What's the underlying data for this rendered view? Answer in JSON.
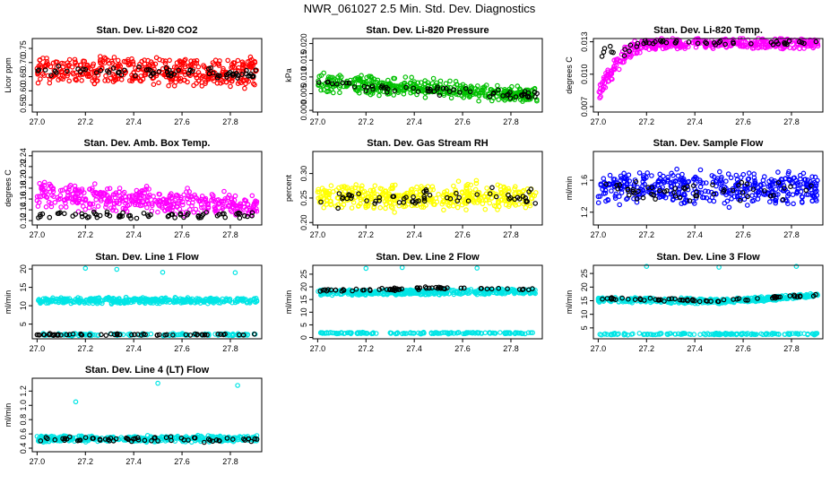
{
  "page_title": "NWR_061027  2.5 Min. Std. Dev. Diagnostics",
  "chart_data": [
    {
      "type": "scatter",
      "title": "Stan. Dev. Li-820 CO2",
      "ylabel": "Licor ppm",
      "color": "#ff0000",
      "xlim": [
        26.98,
        27.93
      ],
      "ylim": [
        0.525,
        0.785
      ],
      "xticks": [
        {
          "v": 27.0,
          "t": "27.0"
        },
        {
          "v": 27.2,
          "t": "27.2"
        },
        {
          "v": 27.4,
          "t": "27.4"
        },
        {
          "v": 27.6,
          "t": "27.6"
        },
        {
          "v": 27.8,
          "t": "27.8"
        }
      ],
      "yticks": [
        {
          "v": 0.55,
          "t": "0.55"
        },
        {
          "v": 0.6,
          "t": "0.60"
        },
        {
          "v": 0.65,
          "t": "0.65"
        },
        {
          "v": 0.7,
          "t": "0.70"
        },
        {
          "v": 0.75,
          "t": "0.75"
        }
      ],
      "series": [
        {
          "name": "all",
          "color": "#ff0000",
          "band": [
            [
              27.0,
              0.64,
              0.71
            ],
            [
              27.5,
              0.63,
              0.71
            ],
            [
              27.9,
              0.62,
              0.71
            ]
          ],
          "spread": 0.045,
          "n": 420
        },
        {
          "name": "highlight",
          "color": "#000000",
          "band": [
            [
              27.0,
              0.66,
              0.68
            ],
            [
              27.9,
              0.65,
              0.67
            ]
          ],
          "spread": 0.03,
          "n": 70
        }
      ]
    },
    {
      "type": "scatter",
      "title": "Stan. Dev. Li-820 Pressure",
      "ylabel": "kPa",
      "color": "#00c000",
      "xlim": [
        26.98,
        27.93
      ],
      "ylim": [
        -0.0005,
        0.0215
      ],
      "xticks": [
        {
          "v": 27.0,
          "t": "27.0"
        },
        {
          "v": 27.2,
          "t": "27.2"
        },
        {
          "v": 27.4,
          "t": "27.4"
        },
        {
          "v": 27.6,
          "t": "27.6"
        },
        {
          "v": 27.8,
          "t": "27.8"
        }
      ],
      "yticks": [
        {
          "v": 0.0,
          "t": "0.000"
        },
        {
          "v": 0.005,
          "t": "0.005"
        },
        {
          "v": 0.01,
          "t": "0.010"
        },
        {
          "v": 0.015,
          "t": "0.015"
        },
        {
          "v": 0.02,
          "t": "0.020"
        }
      ],
      "series": [
        {
          "name": "all",
          "color": "#00c000",
          "band": [
            [
              27.0,
              0.006,
              0.01
            ],
            [
              27.5,
              0.005,
              0.008
            ],
            [
              27.9,
              0.003,
              0.006
            ]
          ],
          "spread": 0.004,
          "n": 420
        },
        {
          "name": "highlight",
          "color": "#000000",
          "band": [
            [
              27.0,
              0.007,
              0.009
            ],
            [
              27.9,
              0.004,
              0.005
            ]
          ],
          "spread": 0.003,
          "n": 60
        }
      ]
    },
    {
      "type": "scatter",
      "title": "Stan. Dev. Li-820 Temp.",
      "ylabel": "degrees C",
      "color": "#ff00ff",
      "xlim": [
        26.98,
        27.93
      ],
      "ylim": [
        0.0065,
        0.0133
      ],
      "xticks": [
        {
          "v": 27.0,
          "t": "27.0"
        },
        {
          "v": 27.2,
          "t": "27.2"
        },
        {
          "v": 27.4,
          "t": "27.4"
        },
        {
          "v": 27.6,
          "t": "27.6"
        },
        {
          "v": 27.8,
          "t": "27.8"
        }
      ],
      "yticks": [
        {
          "v": 0.007,
          "t": "0.007"
        },
        {
          "v": 0.01,
          "t": "0.010"
        },
        {
          "v": 0.013,
          "t": "0.013"
        }
      ],
      "series": [
        {
          "name": "all",
          "color": "#ff00ff",
          "band": [
            [
              27.0,
              0.0075,
              0.009
            ],
            [
              27.1,
              0.011,
              0.0125
            ],
            [
              27.2,
              0.0125,
              0.0132
            ],
            [
              27.9,
              0.0125,
              0.0132
            ]
          ],
          "spread": 0.0006,
          "n": 420
        },
        {
          "name": "highlight",
          "color": "#000000",
          "band": [
            [
              27.1,
              0.0115,
              0.0125
            ],
            [
              27.2,
              0.0128,
              0.0131
            ],
            [
              27.9,
              0.0128,
              0.0131
            ]
          ],
          "spread": 0.0004,
          "n": 50
        }
      ]
    },
    {
      "type": "scatter",
      "title": "Stan. Dev. Amb. Box Temp.",
      "ylabel": "degrees C",
      "color": "#ff00ff",
      "xlim": [
        26.98,
        27.93
      ],
      "ylim": [
        0.112,
        0.248
      ],
      "xticks": [
        {
          "v": 27.0,
          "t": "27.0"
        },
        {
          "v": 27.2,
          "t": "27.2"
        },
        {
          "v": 27.4,
          "t": "27.4"
        },
        {
          "v": 27.6,
          "t": "27.6"
        },
        {
          "v": 27.8,
          "t": "27.8"
        }
      ],
      "yticks": [
        {
          "v": 0.12,
          "t": "0.12"
        },
        {
          "v": 0.14,
          "t": "0.14"
        },
        {
          "v": 0.16,
          "t": "0.16"
        },
        {
          "v": 0.18,
          "t": "0.18"
        },
        {
          "v": 0.2,
          "t": "0.20"
        },
        {
          "v": 0.22,
          "t": "0.22"
        },
        {
          "v": 0.24,
          "t": "0.24"
        }
      ],
      "series": [
        {
          "name": "all",
          "color": "#ff00ff",
          "band": [
            [
              27.0,
              0.15,
              0.19
            ],
            [
              27.5,
              0.14,
              0.17
            ],
            [
              27.9,
              0.135,
              0.16
            ]
          ],
          "spread": 0.03,
          "n": 420
        },
        {
          "name": "highlight",
          "color": "#000000",
          "band": [
            [
              27.0,
              0.125,
              0.135
            ],
            [
              27.9,
              0.125,
              0.135
            ]
          ],
          "spread": 0.008,
          "n": 70
        }
      ]
    },
    {
      "type": "scatter",
      "title": "Stan. Dev. Gas Stream RH",
      "ylabel": "percent",
      "color": "#ffff00",
      "xlim": [
        26.98,
        27.93
      ],
      "ylim": [
        0.195,
        0.345
      ],
      "xticks": [
        {
          "v": 27.0,
          "t": "27.0"
        },
        {
          "v": 27.2,
          "t": "27.2"
        },
        {
          "v": 27.4,
          "t": "27.4"
        },
        {
          "v": 27.6,
          "t": "27.6"
        },
        {
          "v": 27.8,
          "t": "27.8"
        }
      ],
      "yticks": [
        {
          "v": 0.2,
          "t": "0.20"
        },
        {
          "v": 0.25,
          "t": "0.25"
        },
        {
          "v": 0.3,
          "t": "0.30"
        }
      ],
      "series": [
        {
          "name": "all",
          "color": "#ffff00",
          "band": [
            [
              27.0,
              0.235,
              0.27
            ],
            [
              27.9,
              0.235,
              0.27
            ]
          ],
          "spread": 0.035,
          "n": 420
        },
        {
          "name": "highlight",
          "color": "#000000",
          "band": [
            [
              27.0,
              0.24,
              0.26
            ],
            [
              27.9,
              0.24,
              0.26
            ]
          ],
          "spread": 0.035,
          "n": 60
        }
      ]
    },
    {
      "type": "scatter",
      "title": "Stan. Dev. Sample Flow",
      "ylabel": "ml/min",
      "color": "#0000ff",
      "xlim": [
        26.98,
        27.93
      ],
      "ylim": [
        1.04,
        1.96
      ],
      "xticks": [
        {
          "v": 27.0,
          "t": "27.0"
        },
        {
          "v": 27.2,
          "t": "27.2"
        },
        {
          "v": 27.4,
          "t": "27.4"
        },
        {
          "v": 27.6,
          "t": "27.6"
        },
        {
          "v": 27.8,
          "t": "27.8"
        }
      ],
      "yticks": [
        {
          "v": 1.2,
          "t": "1.2"
        },
        {
          "v": 1.6,
          "t": "1.6"
        }
      ],
      "series": [
        {
          "name": "all",
          "color": "#0000ff",
          "band": [
            [
              27.0,
              1.35,
              1.65
            ],
            [
              27.9,
              1.35,
              1.65
            ]
          ],
          "spread": 0.22,
          "n": 420
        },
        {
          "name": "highlight",
          "color": "#000000",
          "band": [
            [
              27.0,
              1.38,
              1.55
            ],
            [
              27.9,
              1.38,
              1.55
            ]
          ],
          "spread": 0.15,
          "n": 55
        }
      ]
    },
    {
      "type": "scatter",
      "title": "Stan. Dev. Line 1 Flow",
      "ylabel": "ml/min",
      "color": "#00e5e5",
      "xlim": [
        26.98,
        27.93
      ],
      "ylim": [
        1.0,
        21.0
      ],
      "xticks": [
        {
          "v": 27.0,
          "t": "27.0"
        },
        {
          "v": 27.2,
          "t": "27.2"
        },
        {
          "v": 27.4,
          "t": "27.4"
        },
        {
          "v": 27.6,
          "t": "27.6"
        },
        {
          "v": 27.8,
          "t": "27.8"
        }
      ],
      "yticks": [
        {
          "v": 5,
          "t": "5"
        },
        {
          "v": 10,
          "t": "10"
        },
        {
          "v": 15,
          "t": "15"
        },
        {
          "v": 20,
          "t": "20"
        }
      ],
      "series": [
        {
          "name": "upper",
          "color": "#00e5e5",
          "band": [
            [
              27.0,
              10.8,
              12.0
            ],
            [
              27.9,
              10.8,
              12.0
            ]
          ],
          "spread": 1.0,
          "n": 380
        },
        {
          "name": "lower",
          "color": "#00e5e5",
          "band": [
            [
              27.0,
              1.9,
              2.4
            ],
            [
              27.9,
              1.9,
              2.4
            ]
          ],
          "spread": 0.3,
          "n": 120
        },
        {
          "name": "highlight",
          "color": "#000000",
          "band": [
            [
              27.0,
              2.0,
              2.3
            ],
            [
              27.9,
              2.0,
              2.3
            ]
          ],
          "spread": 0.3,
          "n": 60
        }
      ],
      "outliers": [
        [
          27.2,
          20.2
        ],
        [
          27.33,
          19.9
        ],
        [
          27.52,
          19.1
        ],
        [
          27.82,
          19.0
        ]
      ]
    },
    {
      "type": "scatter",
      "title": "Stan. Dev. Line 2 Flow",
      "ylabel": "ml/min",
      "color": "#00e5e5",
      "xlim": [
        26.98,
        27.93
      ],
      "ylim": [
        -0.5,
        28.5
      ],
      "xticks": [
        {
          "v": 27.0,
          "t": "27.0"
        },
        {
          "v": 27.2,
          "t": "27.2"
        },
        {
          "v": 27.4,
          "t": "27.4"
        },
        {
          "v": 27.6,
          "t": "27.6"
        },
        {
          "v": 27.8,
          "t": "27.8"
        }
      ],
      "yticks": [
        {
          "v": 0,
          "t": "0"
        },
        {
          "v": 5,
          "t": "5"
        },
        {
          "v": 10,
          "t": "10"
        },
        {
          "v": 15,
          "t": "15"
        },
        {
          "v": 20,
          "t": "20"
        },
        {
          "v": 25,
          "t": "25"
        }
      ],
      "series": [
        {
          "name": "upper",
          "color": "#00e5e5",
          "band": [
            [
              27.0,
              16.8,
              18.6
            ],
            [
              27.9,
              17.2,
              19.2
            ]
          ],
          "spread": 0.9,
          "n": 380
        },
        {
          "name": "lower",
          "color": "#00e5e5",
          "band": [
            [
              27.0,
              1.5,
              2.0
            ],
            [
              27.9,
              1.5,
              2.0
            ]
          ],
          "spread": 0.3,
          "n": 150
        },
        {
          "name": "highlight",
          "color": "#000000",
          "band": [
            [
              27.0,
              18.0,
              18.8
            ],
            [
              27.5,
              19.2,
              19.9
            ],
            [
              27.9,
              18.6,
              19.4
            ]
          ],
          "spread": 0.6,
          "n": 60
        }
      ],
      "outliers": [
        [
          27.2,
          27.3
        ],
        [
          27.35,
          27.6
        ],
        [
          27.66,
          27.4
        ]
      ]
    },
    {
      "type": "scatter",
      "title": "Stan. Dev. Line 3 Flow",
      "ylabel": "ml/min",
      "color": "#00e5e5",
      "xlim": [
        26.98,
        27.93
      ],
      "ylim": [
        1.0,
        28.0
      ],
      "xticks": [
        {
          "v": 27.0,
          "t": "27.0"
        },
        {
          "v": 27.2,
          "t": "27.2"
        },
        {
          "v": 27.4,
          "t": "27.4"
        },
        {
          "v": 27.6,
          "t": "27.6"
        },
        {
          "v": 27.8,
          "t": "27.8"
        }
      ],
      "yticks": [
        {
          "v": 5,
          "t": "5"
        },
        {
          "v": 10,
          "t": "10"
        },
        {
          "v": 15,
          "t": "15"
        },
        {
          "v": 20,
          "t": "20"
        },
        {
          "v": 25,
          "t": "25"
        }
      ],
      "series": [
        {
          "name": "upper",
          "color": "#00e5e5",
          "band": [
            [
              27.0,
              14.6,
              16.2
            ],
            [
              27.5,
              14.0,
              15.6
            ],
            [
              27.9,
              16.2,
              17.6
            ]
          ],
          "spread": 0.8,
          "n": 380
        },
        {
          "name": "lower",
          "color": "#00e5e5",
          "band": [
            [
              27.0,
              2.5,
              3.0
            ],
            [
              27.9,
              2.5,
              3.0
            ]
          ],
          "spread": 0.3,
          "n": 150
        },
        {
          "name": "highlight",
          "color": "#000000",
          "band": [
            [
              27.0,
              15.4,
              16.2
            ],
            [
              27.5,
              14.6,
              15.4
            ],
            [
              27.9,
              16.6,
              17.4
            ]
          ],
          "spread": 0.6,
          "n": 60
        }
      ],
      "outliers": [
        [
          27.2,
          27.6
        ],
        [
          27.5,
          27.3
        ],
        [
          27.82,
          27.6
        ]
      ]
    },
    {
      "type": "scatter",
      "title": "Stan. Dev. Line 4 (LT) Flow",
      "ylabel": "ml/min",
      "color": "#00e5e5",
      "xlim": [
        26.98,
        27.93
      ],
      "ylim": [
        0.35,
        1.38
      ],
      "xticks": [
        {
          "v": 27.0,
          "t": "27.0"
        },
        {
          "v": 27.2,
          "t": "27.2"
        },
        {
          "v": 27.4,
          "t": "27.4"
        },
        {
          "v": 27.6,
          "t": "27.6"
        },
        {
          "v": 27.8,
          "t": "27.8"
        }
      ],
      "yticks": [
        {
          "v": 0.4,
          "t": "0.4"
        },
        {
          "v": 0.6,
          "t": "0.6"
        },
        {
          "v": 0.8,
          "t": "0.8"
        },
        {
          "v": 1.0,
          "t": "1.0"
        },
        {
          "v": 1.2,
          "t": "1.2"
        }
      ],
      "series": [
        {
          "name": "all",
          "color": "#00e5e5",
          "band": [
            [
              27.0,
              0.5,
              0.56
            ],
            [
              27.9,
              0.5,
              0.56
            ]
          ],
          "spread": 0.06,
          "n": 420
        },
        {
          "name": "highlight",
          "color": "#000000",
          "band": [
            [
              27.0,
              0.5,
              0.55
            ],
            [
              27.9,
              0.5,
              0.55
            ]
          ],
          "spread": 0.06,
          "n": 60
        }
      ],
      "outliers": [
        [
          27.16,
          1.05
        ],
        [
          27.5,
          1.31
        ],
        [
          27.83,
          1.28
        ]
      ]
    }
  ]
}
